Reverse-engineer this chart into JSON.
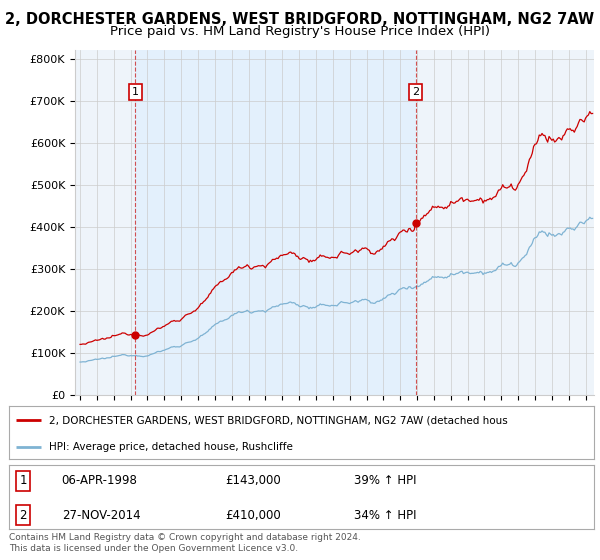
{
  "title": "2, DORCHESTER GARDENS, WEST BRIDGFORD, NOTTINGHAM, NG2 7AW",
  "subtitle": "Price paid vs. HM Land Registry's House Price Index (HPI)",
  "ylim": [
    0,
    820000
  ],
  "yticks": [
    0,
    100000,
    200000,
    300000,
    400000,
    500000,
    600000,
    700000,
    800000
  ],
  "ytick_labels": [
    "£0",
    "£100K",
    "£200K",
    "£300K",
    "£400K",
    "£500K",
    "£600K",
    "£700K",
    "£800K"
  ],
  "sale1_date": 1998.27,
  "sale1_price": 143000,
  "sale2_date": 2014.91,
  "sale2_price": 410000,
  "line_color_red": "#cc0000",
  "line_color_blue": "#7fb3d3",
  "vline_color": "#cc3333",
  "bg_color": "#ffffff",
  "plot_bg_color": "#eef4fa",
  "grid_color": "#cccccc",
  "shade_color": "#ddeeff",
  "legend_label_red": "2, DORCHESTER GARDENS, WEST BRIDGFORD, NOTTINGHAM, NG2 7AW (detached hous",
  "legend_label_blue": "HPI: Average price, detached house, Rushcliffe",
  "footer": "Contains HM Land Registry data © Crown copyright and database right 2024.\nThis data is licensed under the Open Government Licence v3.0.",
  "title_fontsize": 10.5,
  "subtitle_fontsize": 9.5,
  "tick_fontsize": 8,
  "table_row1": [
    "1",
    "06-APR-1998",
    "£143,000",
    "39% ↑ HPI"
  ],
  "table_row2": [
    "2",
    "27-NOV-2014",
    "£410,000",
    "34% ↑ HPI"
  ]
}
